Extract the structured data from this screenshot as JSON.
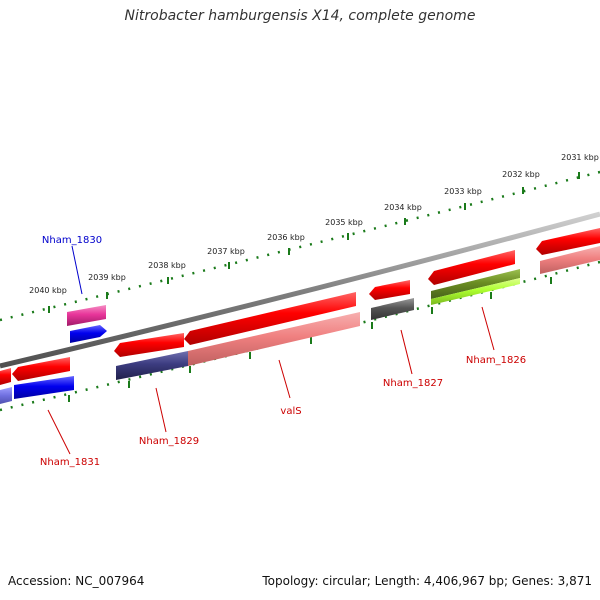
{
  "title": "Nitrobacter hamburgensis X14, complete genome",
  "footer": {
    "accession": "Accession: NC_007964",
    "summary": "Topology: circular; Length: 4,406,967 bp; Genes: 3,871"
  },
  "colors": {
    "backbone": "#808080",
    "tick": "#1a7a1a",
    "cds_forward": "#ff0000",
    "cds_reverse_light": "#f08080",
    "cds_navy": "#3c3c80",
    "cds_blue": "#0000ee",
    "cds_magenta": "#e8359a",
    "cds_gray": "#555555",
    "cds_olive": "#6b8e23",
    "cds_lime": "#adff2f",
    "label_red": "#cc0000",
    "label_blue": "#0000cc"
  },
  "scale_labels": [
    "2040 kbp",
    "2039 kbp",
    "2038 kbp",
    "2037 kbp",
    "2036 kbp",
    "2035 kbp",
    "2034 kbp",
    "2033 kbp",
    "2032 kbp",
    "2031 kbp"
  ],
  "gene_labels": [
    {
      "id": "nham1830",
      "text": "Nham_1830",
      "color_key": "label_blue"
    },
    {
      "id": "nham1831",
      "text": "Nham_1831",
      "color_key": "label_red"
    },
    {
      "id": "nham1829",
      "text": "Nham_1829",
      "color_key": "label_red"
    },
    {
      "id": "vals",
      "text": "valS",
      "color_key": "label_red"
    },
    {
      "id": "nham1827",
      "text": "Nham_1827",
      "color_key": "label_red"
    },
    {
      "id": "nham1826",
      "text": "Nham_1826",
      "color_key": "label_red"
    }
  ]
}
